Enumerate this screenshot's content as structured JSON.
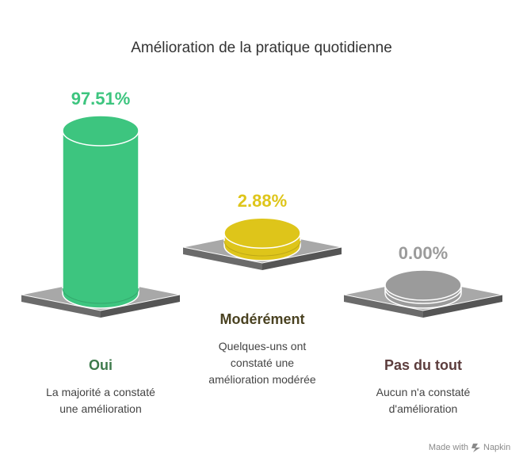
{
  "title": "Amélioration de la pratique quotidienne",
  "footer": {
    "made_with": "Made with",
    "brand": "Napkin"
  },
  "chart_data": {
    "type": "bar",
    "title": "Amélioration de la pratique quotidienne",
    "categories": [
      "Oui",
      "Modérément",
      "Pas du tout"
    ],
    "values": [
      97.51,
      2.88,
      0.0
    ],
    "value_labels": [
      "97.51%",
      "2.88%",
      "0.00%"
    ],
    "descriptions": [
      [
        "La majorité a constaté",
        "une amélioration"
      ],
      [
        "Quelques-uns ont",
        "constaté une",
        "amélioration modérée"
      ],
      [
        "Aucun n'a constaté",
        "d'amélioration"
      ]
    ],
    "colors": [
      "#3DC57F",
      "#DEC51A",
      "#9B9B9B"
    ],
    "label_colors": [
      "#3E7A4C",
      "#4A4221",
      "#5C3D3D"
    ],
    "ylim": [
      0,
      100
    ]
  }
}
